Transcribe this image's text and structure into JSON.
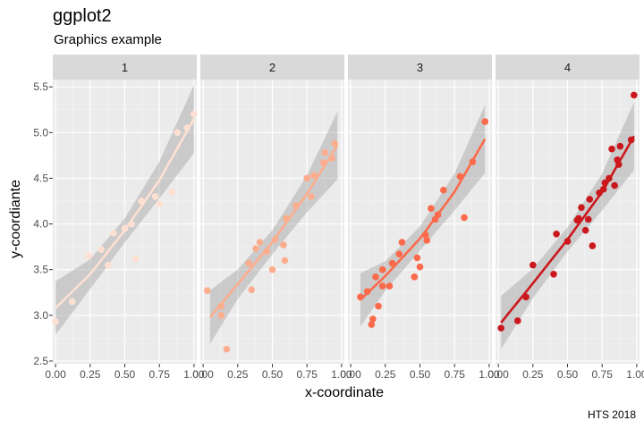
{
  "chart_data": {
    "type": "scatter",
    "title": "ggplot2",
    "subtitle": "Graphics example",
    "xlabel": "x-coordinate",
    "ylabel": "y-coordiante",
    "caption": "HTS 2018",
    "xlim": [
      -0.02,
      1.02
    ],
    "ylim": [
      2.47,
      5.58
    ],
    "x_ticks": [
      0.0,
      0.25,
      0.5,
      0.75,
      1.0
    ],
    "x_tick_labels": [
      "0.00",
      "0.25",
      "0.50",
      "0.75",
      "1.00"
    ],
    "y_ticks": [
      2.5,
      3.0,
      3.5,
      4.0,
      4.5,
      5.0,
      5.5
    ],
    "y_tick_labels": [
      "2.5",
      "3.0",
      "3.5",
      "4.0",
      "4.5",
      "5.0",
      "5.5"
    ],
    "grid": true,
    "facets": [
      {
        "label": "1",
        "color": "#fee0d2",
        "points": [
          [
            0.0,
            2.93
          ],
          [
            0.12,
            3.15
          ],
          [
            0.24,
            3.65
          ],
          [
            0.33,
            3.72
          ],
          [
            0.38,
            3.55
          ],
          [
            0.42,
            3.9
          ],
          [
            0.5,
            3.95
          ],
          [
            0.55,
            4.0
          ],
          [
            0.58,
            3.62
          ],
          [
            0.62,
            4.25
          ],
          [
            0.72,
            4.3
          ],
          [
            0.75,
            4.22
          ],
          [
            0.84,
            4.35
          ],
          [
            0.88,
            5.0
          ],
          [
            0.95,
            5.05
          ],
          [
            1.0,
            5.2
          ]
        ],
        "fit": [
          [
            0.0,
            3.08
          ],
          [
            0.25,
            3.45
          ],
          [
            0.5,
            3.93
          ],
          [
            0.75,
            4.48
          ],
          [
            1.0,
            5.15
          ]
        ]
      },
      {
        "label": "2",
        "color": "#fcad8e",
        "points": [
          [
            0.03,
            3.27
          ],
          [
            0.13,
            3.0
          ],
          [
            0.13,
            3.1
          ],
          [
            0.17,
            2.63
          ],
          [
            0.33,
            3.57
          ],
          [
            0.35,
            3.28
          ],
          [
            0.38,
            3.73
          ],
          [
            0.41,
            3.8
          ],
          [
            0.46,
            3.7
          ],
          [
            0.5,
            3.5
          ],
          [
            0.52,
            3.83
          ],
          [
            0.58,
            3.77
          ],
          [
            0.59,
            3.6
          ],
          [
            0.6,
            4.06
          ],
          [
            0.67,
            4.2
          ],
          [
            0.75,
            4.5
          ],
          [
            0.78,
            4.3
          ],
          [
            0.8,
            4.53
          ],
          [
            0.87,
            4.67
          ],
          [
            0.88,
            4.78
          ],
          [
            0.93,
            4.72
          ],
          [
            0.95,
            4.88
          ]
        ],
        "fit": [
          [
            0.05,
            2.98
          ],
          [
            0.25,
            3.34
          ],
          [
            0.5,
            3.8
          ],
          [
            0.75,
            4.33
          ],
          [
            0.97,
            4.86
          ]
        ]
      },
      {
        "label": "3",
        "color": "#fb6a4a",
        "points": [
          [
            0.07,
            3.2
          ],
          [
            0.12,
            3.26
          ],
          [
            0.15,
            2.9
          ],
          [
            0.16,
            2.96
          ],
          [
            0.18,
            3.42
          ],
          [
            0.2,
            3.1
          ],
          [
            0.23,
            3.5
          ],
          [
            0.23,
            3.32
          ],
          [
            0.28,
            3.32
          ],
          [
            0.3,
            3.57
          ],
          [
            0.35,
            3.67
          ],
          [
            0.37,
            3.8
          ],
          [
            0.46,
            3.42
          ],
          [
            0.48,
            3.63
          ],
          [
            0.5,
            3.53
          ],
          [
            0.54,
            3.88
          ],
          [
            0.55,
            3.82
          ],
          [
            0.58,
            4.17
          ],
          [
            0.61,
            4.05
          ],
          [
            0.63,
            4.1
          ],
          [
            0.67,
            4.37
          ],
          [
            0.79,
            4.52
          ],
          [
            0.82,
            4.07
          ],
          [
            0.88,
            4.68
          ],
          [
            0.97,
            5.12
          ]
        ],
        "fit": [
          [
            0.07,
            3.17
          ],
          [
            0.25,
            3.43
          ],
          [
            0.5,
            3.84
          ],
          [
            0.75,
            4.35
          ],
          [
            0.97,
            4.93
          ]
        ]
      },
      {
        "label": "4",
        "color": "#cb181d",
        "points": [
          [
            0.02,
            2.86
          ],
          [
            0.14,
            2.94
          ],
          [
            0.2,
            3.2
          ],
          [
            0.25,
            3.55
          ],
          [
            0.4,
            3.45
          ],
          [
            0.42,
            3.89
          ],
          [
            0.5,
            3.81
          ],
          [
            0.57,
            4.04
          ],
          [
            0.58,
            4.06
          ],
          [
            0.6,
            4.18
          ],
          [
            0.63,
            3.93
          ],
          [
            0.65,
            4.05
          ],
          [
            0.66,
            4.27
          ],
          [
            0.68,
            3.76
          ],
          [
            0.73,
            4.34
          ],
          [
            0.76,
            4.38
          ],
          [
            0.77,
            4.45
          ],
          [
            0.8,
            4.5
          ],
          [
            0.82,
            4.82
          ],
          [
            0.84,
            4.42
          ],
          [
            0.86,
            4.7
          ],
          [
            0.87,
            4.65
          ],
          [
            0.88,
            4.85
          ],
          [
            0.96,
            4.92
          ],
          [
            0.98,
            5.41
          ]
        ],
        "fit": [
          [
            0.02,
            2.92
          ],
          [
            0.25,
            3.35
          ],
          [
            0.5,
            3.83
          ],
          [
            0.75,
            4.35
          ],
          [
            0.98,
            4.96
          ]
        ]
      }
    ]
  }
}
